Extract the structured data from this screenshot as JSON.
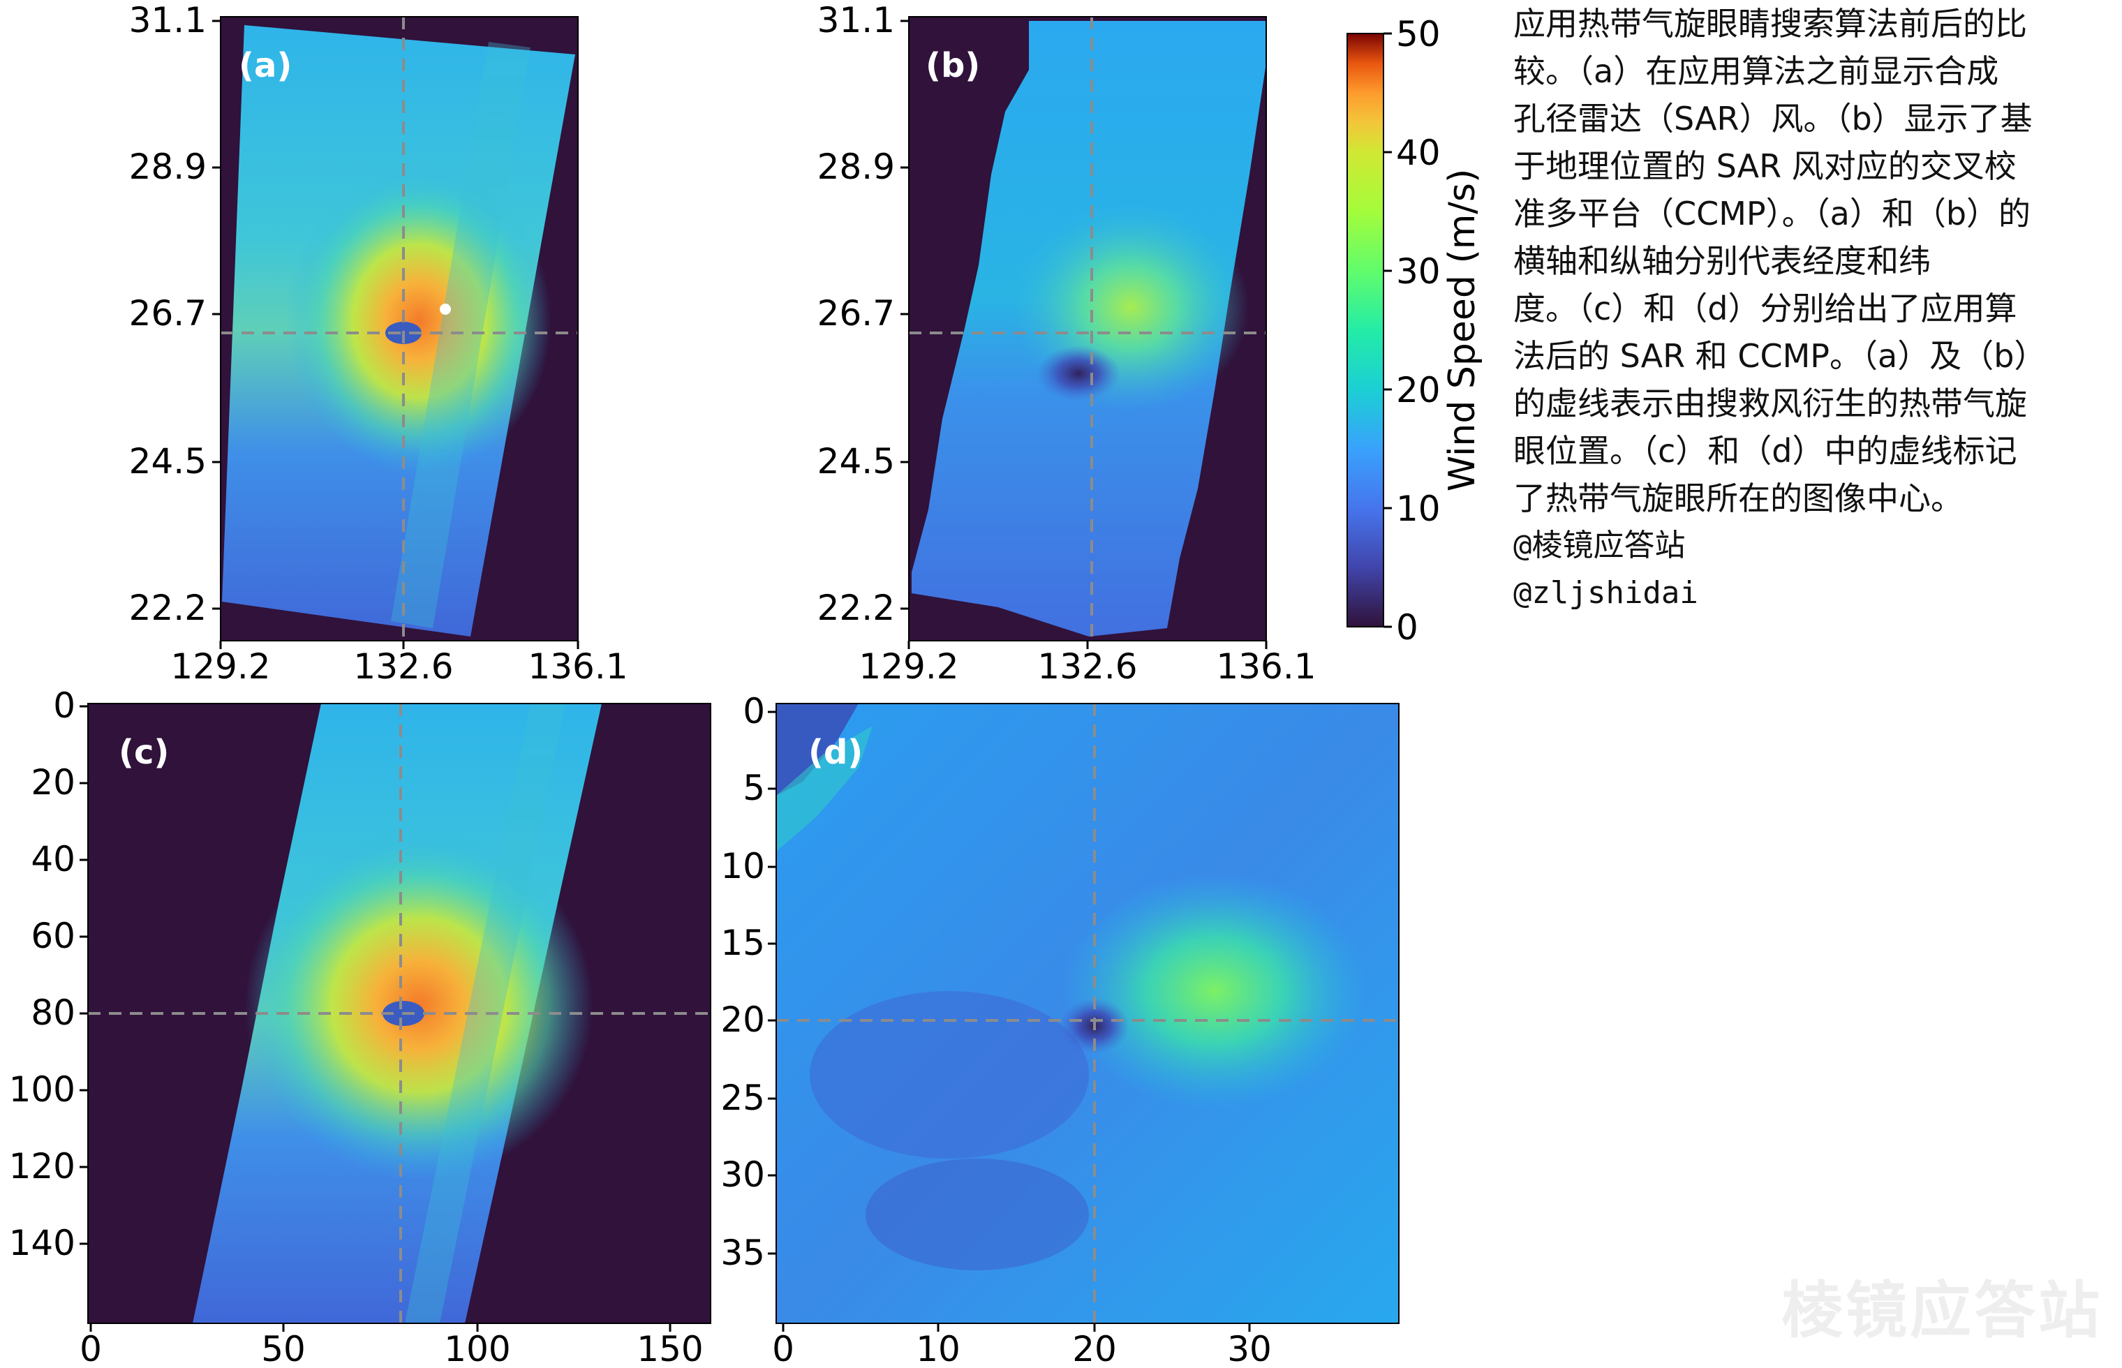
{
  "panels": {
    "a": {
      "label": "(a)",
      "y_ticks": [
        "31.1",
        "28.9",
        "26.7",
        "24.5",
        "22.2"
      ],
      "x_ticks": [
        "129.2",
        "132.6",
        "136.1"
      ]
    },
    "b": {
      "label": "(b)",
      "y_ticks": [
        "31.1",
        "28.9",
        "26.7",
        "24.5",
        "22.2"
      ],
      "x_ticks": [
        "129.2",
        "132.6",
        "136.1"
      ]
    },
    "c": {
      "label": "(c)",
      "y_ticks": [
        "0",
        "20",
        "40",
        "60",
        "80",
        "100",
        "120",
        "140"
      ],
      "x_ticks": [
        "0",
        "50",
        "100",
        "150"
      ]
    },
    "d": {
      "label": "(d)",
      "y_ticks": [
        "0",
        "5",
        "10",
        "15",
        "20",
        "25",
        "30",
        "35"
      ],
      "x_ticks": [
        "0",
        "10",
        "20",
        "30"
      ]
    }
  },
  "colorbar": {
    "label": "Wind Speed (m/s)",
    "ticks": [
      "50",
      "40",
      "30",
      "20",
      "10",
      "0"
    ],
    "range": [
      0,
      50
    ],
    "colormap": "turbo"
  },
  "caption": {
    "lines": [
      "应用热带气旋眼睛搜索算法前后的比",
      "较。（a）在应用算法之前显示合成",
      "孔径雷达（SAR）风。（b）显示了基",
      "于地理位置的 SAR 风对应的交叉校",
      "准多平台（CCMP）。（a）和（b）的",
      "横轴和纵轴分别代表经度和纬",
      "度。（c）和（d）分别给出了应用算",
      "法后的 SAR 和 CCMP。（a）及（b）",
      "的虚线表示由搜救风衍生的热带气旋",
      "眼位置。（c）和（d）中的虚线标记",
      "了热带气旋眼所在的图像中心。"
    ],
    "handle1": "@棱镜应答站",
    "handle2": "@zljshidai"
  },
  "watermark": "棱镜应答站",
  "colors": {
    "background_dark": "#30123b",
    "dashed_line": "#8c8c8c",
    "low_wind": "#3f56c7",
    "mid_wind": "#27b8e8",
    "high_wind": "#f9a433",
    "eye_marker": "#ffffff"
  }
}
